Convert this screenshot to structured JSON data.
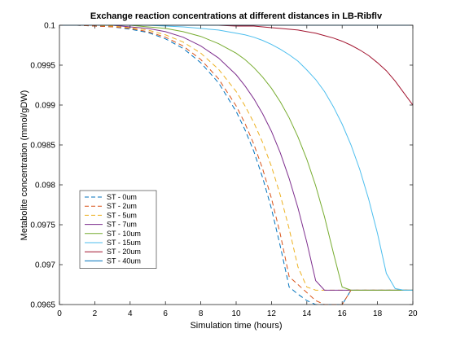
{
  "chart_data": {
    "type": "line",
    "title": "Exchange reaction concentrations at different distances in LB-Ribflv",
    "xlabel": "Simulation time (hours)",
    "ylabel": "Metabolite concentration (mmol/gDW)",
    "xlim": [
      0,
      20
    ],
    "ylim": [
      0.0965,
      0.1
    ],
    "x_ticks": [
      0,
      2,
      4,
      6,
      8,
      10,
      12,
      14,
      16,
      18,
      20
    ],
    "y_ticks": [
      0.0965,
      0.097,
      0.0975,
      0.098,
      0.0985,
      0.099,
      0.0995,
      0.1
    ],
    "x_tick_labels": [
      "0",
      "2",
      "4",
      "6",
      "8",
      "10",
      "12",
      "14",
      "16",
      "18",
      "20"
    ],
    "y_tick_labels": [
      "0.0965",
      "0.097",
      "0.0975",
      "0.098",
      "0.0985",
      "0.099",
      "0.0995",
      "0.1"
    ],
    "grid": false,
    "legend_position": "bottom-left",
    "x": [
      0,
      1,
      2,
      3,
      4,
      5,
      6,
      7,
      8,
      9,
      10,
      10.5,
      11,
      11.5,
      12,
      12.5,
      13,
      13.5,
      14,
      14.5,
      15,
      15.5,
      16,
      16.5,
      17,
      17.5,
      18,
      18.5,
      19,
      19.5,
      20
    ],
    "series": [
      {
        "name": "ST - 0um",
        "color": "#0072BD",
        "dash": "dashed",
        "values": [
          0.1,
          0.1,
          0.09999,
          0.09998,
          0.09995,
          0.09991,
          0.09983,
          0.09971,
          0.09953,
          0.09928,
          0.09892,
          0.09869,
          0.09842,
          0.09809,
          0.0977,
          0.09723,
          0.09672,
          0.09663,
          0.09655,
          0.09647,
          0.0964,
          0.09633,
          0.0963,
          0.09668,
          0.09668,
          0.09668,
          0.09668,
          0.09668,
          0.09668,
          0.09668,
          0.09668
        ]
      },
      {
        "name": "ST - 2um",
        "color": "#D95319",
        "dash": "dashed",
        "values": [
          0.1,
          0.1,
          0.09999,
          0.09998,
          0.09996,
          0.09992,
          0.09985,
          0.09974,
          0.09957,
          0.09933,
          0.09899,
          0.09877,
          0.09851,
          0.0982,
          0.09783,
          0.09738,
          0.09685,
          0.09675,
          0.09665,
          0.09655,
          0.09646,
          0.09638,
          0.09633,
          0.09668,
          0.09668,
          0.09668,
          0.09668,
          0.09668,
          0.09668,
          0.09668,
          0.09668
        ]
      },
      {
        "name": "ST - 5um",
        "color": "#EDB120",
        "dash": "dashed",
        "values": [
          0.1,
          0.1,
          0.1,
          0.09999,
          0.09997,
          0.09994,
          0.09988,
          0.09979,
          0.09965,
          0.09945,
          0.09917,
          0.09899,
          0.09878,
          0.09853,
          0.09823,
          0.09787,
          0.09745,
          0.09697,
          0.09672,
          0.09668,
          0.09668,
          0.09668,
          0.09668,
          0.09668,
          0.09668,
          0.09668,
          0.09668,
          0.09668,
          0.09668,
          0.09668,
          0.09668
        ]
      },
      {
        "name": "ST - 7um",
        "color": "#7E2F8E",
        "dash": "solid",
        "values": [
          0.1,
          0.1,
          0.1,
          0.1,
          0.09998,
          0.09996,
          0.09992,
          0.09985,
          0.09974,
          0.09959,
          0.09938,
          0.09924,
          0.09908,
          0.09889,
          0.09867,
          0.0984,
          0.09808,
          0.09771,
          0.09728,
          0.0968,
          0.09668,
          0.09668,
          0.09668,
          0.09668,
          0.09668,
          0.09668,
          0.09668,
          0.09668,
          0.09668,
          0.09668,
          0.09668
        ]
      },
      {
        "name": "ST - 10um",
        "color": "#77AC30",
        "dash": "solid",
        "values": [
          0.1,
          0.1,
          0.1,
          0.1,
          0.1,
          0.09998,
          0.09996,
          0.09992,
          0.09986,
          0.09977,
          0.09965,
          0.09957,
          0.09947,
          0.09935,
          0.09921,
          0.09904,
          0.09884,
          0.0986,
          0.09832,
          0.09799,
          0.0976,
          0.09715,
          0.09672,
          0.09668,
          0.09668,
          0.09668,
          0.09668,
          0.09668,
          0.09668,
          0.09668,
          0.09668
        ]
      },
      {
        "name": "ST - 15um",
        "color": "#4DBEEE",
        "dash": "solid",
        "values": [
          0.1,
          0.1,
          0.1,
          0.1,
          0.1,
          0.1,
          0.09999,
          0.09998,
          0.09996,
          0.09994,
          0.0999,
          0.09988,
          0.09985,
          0.09981,
          0.09976,
          0.0997,
          0.09963,
          0.09955,
          0.09944,
          0.09932,
          0.09917,
          0.09898,
          0.09876,
          0.0985,
          0.09819,
          0.09782,
          0.09739,
          0.09689,
          0.0967,
          0.09668,
          0.09668
        ]
      },
      {
        "name": "ST - 20um",
        "color": "#A2142F",
        "dash": "solid",
        "values": [
          0.1,
          0.1,
          0.1,
          0.1,
          0.1,
          0.1,
          0.1,
          0.1,
          0.1,
          0.1,
          0.09999,
          0.09999,
          0.09999,
          0.09998,
          0.09997,
          0.09996,
          0.09995,
          0.09994,
          0.09992,
          0.0999,
          0.09987,
          0.09984,
          0.0998,
          0.09975,
          0.09969,
          0.09962,
          0.09953,
          0.09943,
          0.0993,
          0.09915,
          0.099
        ]
      },
      {
        "name": "ST - 40um",
        "color": "#0072BD",
        "dash": "solid",
        "values": [
          0.1,
          0.1,
          0.1,
          0.1,
          0.1,
          0.1,
          0.1,
          0.1,
          0.1,
          0.1,
          0.1,
          0.1,
          0.1,
          0.1,
          0.1,
          0.1,
          0.1,
          0.1,
          0.1,
          0.1,
          0.1,
          0.1,
          0.1,
          0.1,
          0.1,
          0.1,
          0.1,
          0.1,
          0.1,
          0.1,
          0.1
        ]
      }
    ]
  }
}
